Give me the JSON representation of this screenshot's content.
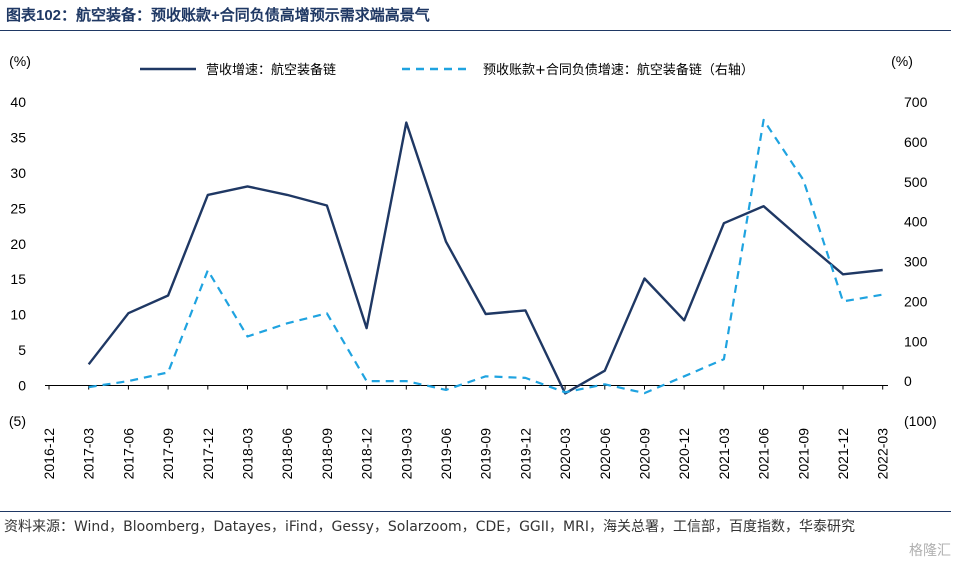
{
  "title": "图表102：航空装备：预收账款+合同负债高增预示需求端高景气",
  "source": "资料来源：Wind，Bloomberg，Datayes，iFind，Gessy，Solarzoom，CDE，GGII，MRI，海关总署，工信部，百度指数，华泰研究",
  "watermark": "格隆汇",
  "chart_data": {
    "type": "line",
    "categories": [
      "2016-12",
      "2017-03",
      "2017-06",
      "2017-09",
      "2017-12",
      "2018-03",
      "2018-06",
      "2018-09",
      "2018-12",
      "2019-03",
      "2019-06",
      "2019-09",
      "2019-12",
      "2020-03",
      "2020-06",
      "2020-09",
      "2020-12",
      "2021-03",
      "2021-06",
      "2021-09",
      "2021-12",
      "2022-03"
    ],
    "left_axis": {
      "unit_label": "(%)",
      "ylim": [
        -5,
        40
      ],
      "ticks": [
        40,
        35,
        30,
        25,
        20,
        15,
        10,
        5,
        0,
        -5
      ],
      "tick_labels": [
        "40",
        "35",
        "30",
        "25",
        "20",
        "15",
        "10",
        "5",
        "0",
        "(5)"
      ]
    },
    "right_axis": {
      "unit_label": "(%)",
      "ylim": [
        -100,
        700
      ],
      "ticks": [
        700,
        600,
        500,
        400,
        300,
        200,
        100,
        0,
        -100
      ],
      "tick_labels": [
        "700",
        "600",
        "500",
        "400",
        "300",
        "200",
        "100",
        "0",
        "(100)"
      ]
    },
    "legend_placement": "top",
    "series": [
      {
        "name": "营收增速：航空装备链",
        "axis": "left",
        "style": "solid",
        "color": "#1f3864",
        "values": [
          null,
          3.0,
          10.2,
          12.7,
          26.9,
          28.1,
          26.9,
          25.4,
          8.1,
          37.1,
          20.3,
          10.1,
          10.6,
          -1.1,
          2.1,
          15.1,
          9.2,
          22.9,
          25.3,
          20.4,
          15.7,
          16.3
        ]
      },
      {
        "name": "预收账款+合同负债增速：航空装备链（右轴）",
        "axis": "right",
        "style": "dashed",
        "color": "#1fa3e0",
        "values": [
          null,
          -15,
          0,
          22,
          278,
          112,
          145,
          170,
          0,
          0,
          -22,
          12,
          8,
          -28,
          -8,
          -30,
          12,
          55,
          655,
          505,
          200,
          217
        ]
      }
    ]
  }
}
